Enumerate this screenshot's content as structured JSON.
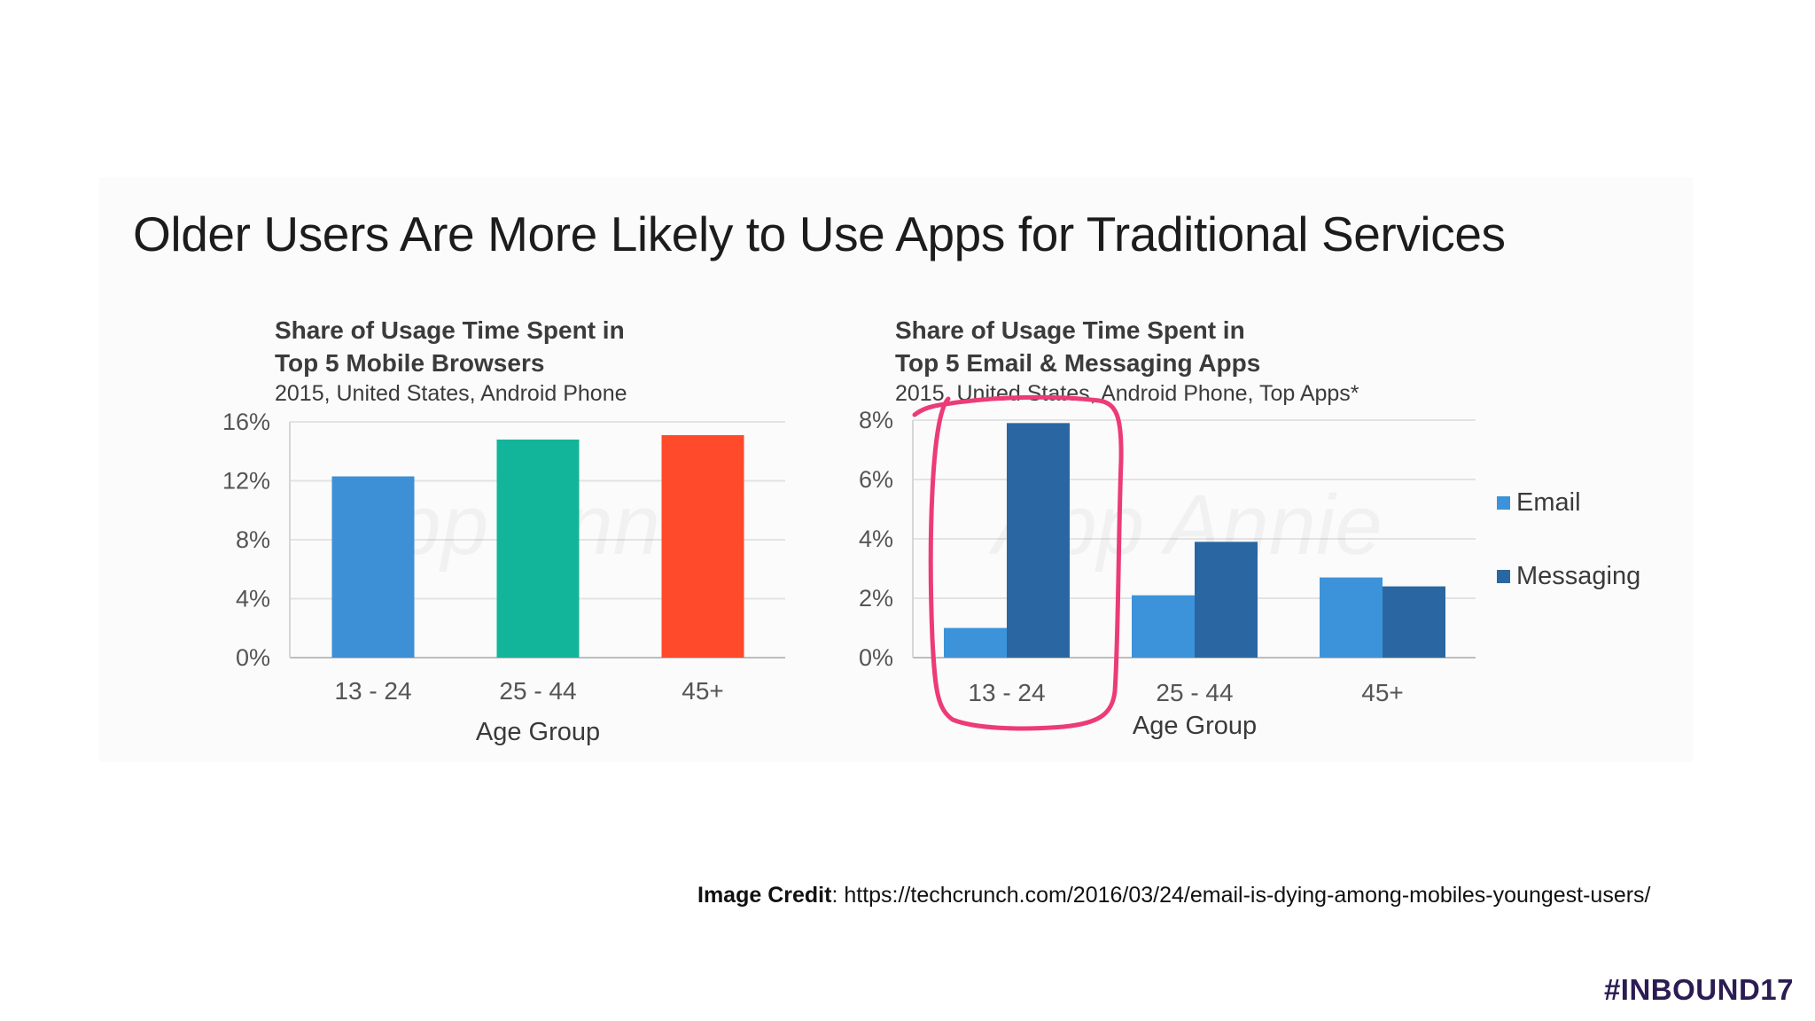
{
  "slide": {
    "title": "Older Users Are More Likely to Use Apps for Traditional Services",
    "credit_label": "Image Credit",
    "credit_url": "https://techcrunch.com/2016/03/24/email-is-dying-among-mobiles-youngest-users/",
    "hashtag": "#INBOUND17"
  },
  "chart_data": [
    {
      "type": "bar",
      "title_line1": "Share of Usage Time Spent in",
      "title_line2": "Top 5 Mobile Browsers",
      "subtitle": "2015, United States, Android Phone",
      "xlabel": "Age Group",
      "ylabel": "",
      "categories": [
        "13 - 24",
        "25 - 44",
        "45+"
      ],
      "values": [
        12.3,
        14.8,
        15.1
      ],
      "colors": [
        "#3d8fd6",
        "#13b59a",
        "#ff4a2c"
      ],
      "yticks": [
        "0%",
        "4%",
        "8%",
        "12%",
        "16%"
      ],
      "ylim": [
        0,
        16
      ],
      "grid": true,
      "watermark": "App Annie"
    },
    {
      "type": "bar",
      "title_line1": "Share of Usage Time Spent in",
      "title_line2": "Top 5 Email & Messaging Apps",
      "subtitle": "2015, United States, Android Phone, Top Apps*",
      "xlabel": "Age Group",
      "ylabel": "",
      "categories": [
        "13 - 24",
        "25 - 44",
        "45+"
      ],
      "series": [
        {
          "name": "Email",
          "values": [
            1.0,
            2.1,
            2.7
          ],
          "color": "#3d93d9"
        },
        {
          "name": "Messaging",
          "values": [
            7.9,
            3.9,
            2.4
          ],
          "color": "#2a67a2"
        }
      ],
      "yticks": [
        "0%",
        "2%",
        "4%",
        "6%",
        "8%"
      ],
      "ylim": [
        0,
        8
      ],
      "grid": true,
      "legend": "right",
      "highlight": {
        "category": "13 - 24",
        "color": "#ec3b78"
      },
      "watermark": "App Annie"
    }
  ]
}
